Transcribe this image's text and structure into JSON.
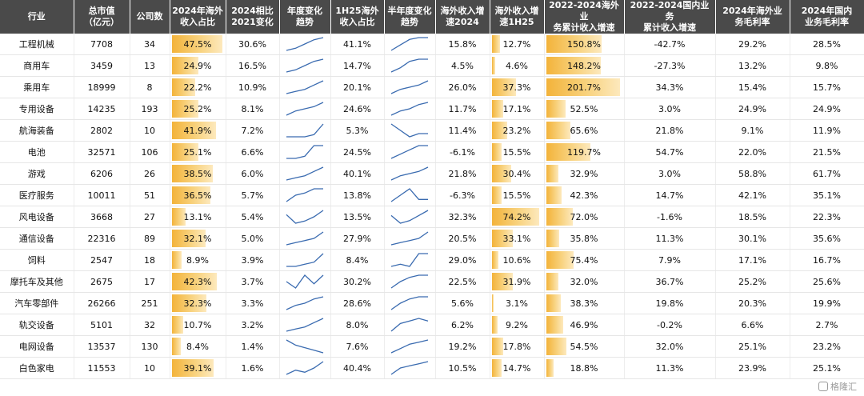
{
  "chart_data": {
    "type": "table",
    "columns": [
      "行业",
      "总市值\n（亿元）",
      "公司数",
      "2024年海外\n收入占比",
      "2024相比\n2021变化",
      "年度变化\n趋势",
      "1H25海外\n收入占比",
      "半年度变化\n趋势",
      "海外收入增\n速2024",
      "海外收入增\n速1H25",
      "2022-2024海外业\n务累计收入增速",
      "2022-2024国内业务\n累计收入增速",
      "2024年海外业\n务毛利率",
      "2024年国内\n业务毛利率"
    ],
    "rows": [
      {
        "industry": "工程机械",
        "mktcap": "7708",
        "count": "34",
        "os2024": "47.5%",
        "chg": "30.6%",
        "os1h25": "41.1%",
        "g2024": "15.8%",
        "g1h25": "12.7%",
        "cum_os": "150.8%",
        "cum_dom": "-42.7%",
        "gm_os": "29.2%",
        "gm_dom": "28.5%",
        "annual_trend": [
          3,
          4,
          6,
          8,
          9
        ],
        "half_trend": [
          3,
          6,
          9,
          10,
          10
        ]
      },
      {
        "industry": "商用车",
        "mktcap": "3459",
        "count": "13",
        "os2024": "24.9%",
        "chg": "16.5%",
        "os1h25": "14.7%",
        "g2024": "4.5%",
        "g1h25": "4.6%",
        "cum_os": "148.2%",
        "cum_dom": "-27.3%",
        "gm_os": "13.2%",
        "gm_dom": "9.8%",
        "annual_trend": [
          3,
          4,
          6,
          8,
          9
        ],
        "half_trend": [
          3,
          5,
          8,
          9,
          9
        ]
      },
      {
        "industry": "乘用车",
        "mktcap": "18999",
        "count": "8",
        "os2024": "22.2%",
        "chg": "10.9%",
        "os1h25": "20.1%",
        "g2024": "26.0%",
        "g1h25": "37.3%",
        "cum_os": "201.7%",
        "cum_dom": "34.3%",
        "gm_os": "15.4%",
        "gm_dom": "15.7%",
        "annual_trend": [
          3,
          4,
          5,
          7,
          9
        ],
        "half_trend": [
          3,
          5,
          6,
          7,
          9
        ]
      },
      {
        "industry": "专用设备",
        "mktcap": "14235",
        "count": "193",
        "os2024": "25.2%",
        "chg": "8.1%",
        "os1h25": "24.6%",
        "g2024": "11.7%",
        "g1h25": "17.1%",
        "cum_os": "52.5%",
        "cum_dom": "3.0%",
        "gm_os": "24.9%",
        "gm_dom": "24.9%",
        "annual_trend": [
          3,
          5,
          6,
          7,
          9
        ],
        "half_trend": [
          3,
          5,
          6,
          8,
          9
        ]
      },
      {
        "industry": "航海装备",
        "mktcap": "2802",
        "count": "10",
        "os2024": "41.9%",
        "chg": "7.2%",
        "os1h25": "5.3%",
        "g2024": "11.4%",
        "g1h25": "23.2%",
        "cum_os": "65.6%",
        "cum_dom": "21.8%",
        "gm_os": "9.1%",
        "gm_dom": "11.9%",
        "annual_trend": [
          3,
          3,
          3,
          4,
          9
        ],
        "half_trend": [
          9,
          7,
          5,
          6,
          6
        ]
      },
      {
        "industry": "电池",
        "mktcap": "32571",
        "count": "106",
        "os2024": "25.1%",
        "chg": "6.6%",
        "os1h25": "24.5%",
        "g2024": "-6.1%",
        "g1h25": "15.5%",
        "cum_os": "119.7%",
        "cum_dom": "54.7%",
        "gm_os": "22.0%",
        "gm_dom": "21.5%",
        "annual_trend": [
          3,
          3,
          4,
          9,
          9
        ],
        "half_trend": [
          3,
          5,
          7,
          9,
          9
        ]
      },
      {
        "industry": "游戏",
        "mktcap": "6206",
        "count": "26",
        "os2024": "38.5%",
        "chg": "6.0%",
        "os1h25": "40.1%",
        "g2024": "21.8%",
        "g1h25": "30.4%",
        "cum_os": "32.9%",
        "cum_dom": "3.0%",
        "gm_os": "58.8%",
        "gm_dom": "61.7%",
        "annual_trend": [
          3,
          4,
          5,
          7,
          9
        ],
        "half_trend": [
          3,
          5,
          6,
          7,
          9
        ]
      },
      {
        "industry": "医疗服务",
        "mktcap": "10011",
        "count": "51",
        "os2024": "36.5%",
        "chg": "5.7%",
        "os1h25": "13.8%",
        "g2024": "-6.3%",
        "g1h25": "15.5%",
        "cum_os": "42.3%",
        "cum_dom": "14.7%",
        "gm_os": "42.1%",
        "gm_dom": "35.1%",
        "annual_trend": [
          3,
          6,
          7,
          9,
          9
        ],
        "half_trend": [
          3,
          6,
          9,
          4,
          4
        ]
      },
      {
        "industry": "风电设备",
        "mktcap": "3668",
        "count": "27",
        "os2024": "13.1%",
        "chg": "5.4%",
        "os1h25": "13.5%",
        "g2024": "32.3%",
        "g1h25": "74.2%",
        "cum_os": "72.0%",
        "cum_dom": "-1.6%",
        "gm_os": "18.5%",
        "gm_dom": "22.3%",
        "annual_trend": [
          7,
          3,
          4,
          6,
          9
        ],
        "half_trend": [
          7,
          4,
          5,
          7,
          9
        ]
      },
      {
        "industry": "通信设备",
        "mktcap": "22316",
        "count": "89",
        "os2024": "32.1%",
        "chg": "5.0%",
        "os1h25": "27.9%",
        "g2024": "20.5%",
        "g1h25": "33.1%",
        "cum_os": "35.8%",
        "cum_dom": "11.3%",
        "gm_os": "30.1%",
        "gm_dom": "35.6%",
        "annual_trend": [
          3,
          4,
          5,
          6,
          9
        ],
        "half_trend": [
          3,
          4,
          5,
          6,
          9
        ]
      },
      {
        "industry": "饲料",
        "mktcap": "2547",
        "count": "18",
        "os2024": "8.9%",
        "chg": "3.9%",
        "os1h25": "8.4%",
        "g2024": "29.0%",
        "g1h25": "10.6%",
        "cum_os": "75.4%",
        "cum_dom": "7.9%",
        "gm_os": "17.1%",
        "gm_dom": "16.7%",
        "annual_trend": [
          3,
          3,
          4,
          5,
          9
        ],
        "half_trend": [
          3,
          4,
          3,
          9,
          9
        ]
      },
      {
        "industry": "摩托车及其他",
        "mktcap": "2675",
        "count": "17",
        "os2024": "42.3%",
        "chg": "3.7%",
        "os1h25": "30.2%",
        "g2024": "22.5%",
        "g1h25": "31.9%",
        "cum_os": "32.0%",
        "cum_dom": "36.7%",
        "gm_os": "25.2%",
        "gm_dom": "25.6%",
        "annual_trend": [
          6,
          3,
          9,
          5,
          9
        ],
        "half_trend": [
          3,
          6,
          8,
          9,
          9
        ]
      },
      {
        "industry": "汽车零部件",
        "mktcap": "26266",
        "count": "251",
        "os2024": "32.3%",
        "chg": "3.3%",
        "os1h25": "28.6%",
        "g2024": "5.6%",
        "g1h25": "3.1%",
        "cum_os": "38.3%",
        "cum_dom": "19.8%",
        "gm_os": "20.3%",
        "gm_dom": "19.9%",
        "annual_trend": [
          3,
          5,
          6,
          8,
          9
        ],
        "half_trend": [
          3,
          6,
          8,
          9,
          9
        ]
      },
      {
        "industry": "轨交设备",
        "mktcap": "5101",
        "count": "32",
        "os2024": "10.7%",
        "chg": "3.2%",
        "os1h25": "8.0%",
        "g2024": "6.2%",
        "g1h25": "9.2%",
        "cum_os": "46.9%",
        "cum_dom": "-0.2%",
        "gm_os": "6.6%",
        "gm_dom": "2.7%",
        "annual_trend": [
          3,
          4,
          5,
          7,
          9
        ],
        "half_trend": [
          3,
          6,
          7,
          8,
          7
        ]
      },
      {
        "industry": "电网设备",
        "mktcap": "13537",
        "count": "130",
        "os2024": "8.4%",
        "chg": "1.4%",
        "os1h25": "7.6%",
        "g2024": "19.2%",
        "g1h25": "17.8%",
        "cum_os": "54.5%",
        "cum_dom": "32.0%",
        "gm_os": "25.1%",
        "gm_dom": "23.2%",
        "annual_trend": [
          8,
          6,
          5,
          4,
          3
        ],
        "half_trend": [
          3,
          5,
          7,
          8,
          9
        ]
      },
      {
        "industry": "白色家电",
        "mktcap": "11553",
        "count": "10",
        "os2024": "39.1%",
        "chg": "1.6%",
        "os1h25": "40.4%",
        "g2024": "10.5%",
        "g1h25": "14.7%",
        "cum_os": "18.8%",
        "cum_dom": "11.3%",
        "gm_os": "23.9%",
        "gm_dom": "25.1%",
        "annual_trend": [
          3,
          5,
          4,
          6,
          9
        ],
        "half_trend": [
          3,
          6,
          7,
          8,
          9
        ]
      }
    ],
    "bar_scale": {
      "os2024_max": 50,
      "g1h25_max": 80,
      "cum_os_max": 210
    },
    "colors": {
      "header_bg": "#4a4a4a",
      "bar": "#f3b33a",
      "line": "#3a6bb0"
    }
  },
  "watermark": {
    "text": "格隆汇"
  }
}
